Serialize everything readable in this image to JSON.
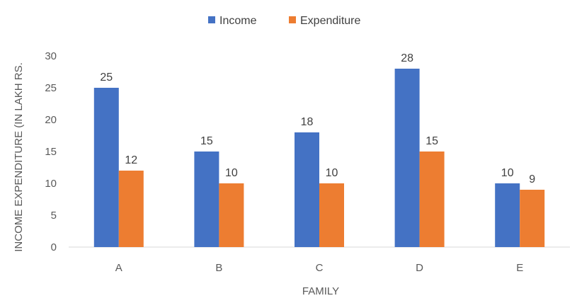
{
  "chart_data": {
    "type": "bar",
    "categories": [
      "A",
      "B",
      "C",
      "D",
      "E"
    ],
    "series": [
      {
        "name": "Income",
        "values": [
          25,
          15,
          18,
          28,
          10
        ],
        "color": "#4472C4"
      },
      {
        "name": "Expenditure",
        "values": [
          12,
          10,
          10,
          15,
          9
        ],
        "color": "#ED7D31"
      }
    ],
    "title": "",
    "xlabel": "FAMILY",
    "ylabel": "INCOME EXPENDITURE (IN LAKH RS.",
    "ylim": [
      0,
      30
    ],
    "yticks": [
      "0",
      "5",
      "10",
      "15",
      "20",
      "25",
      "30"
    ],
    "grid": false,
    "legend": "top-center",
    "data_labels": true
  }
}
